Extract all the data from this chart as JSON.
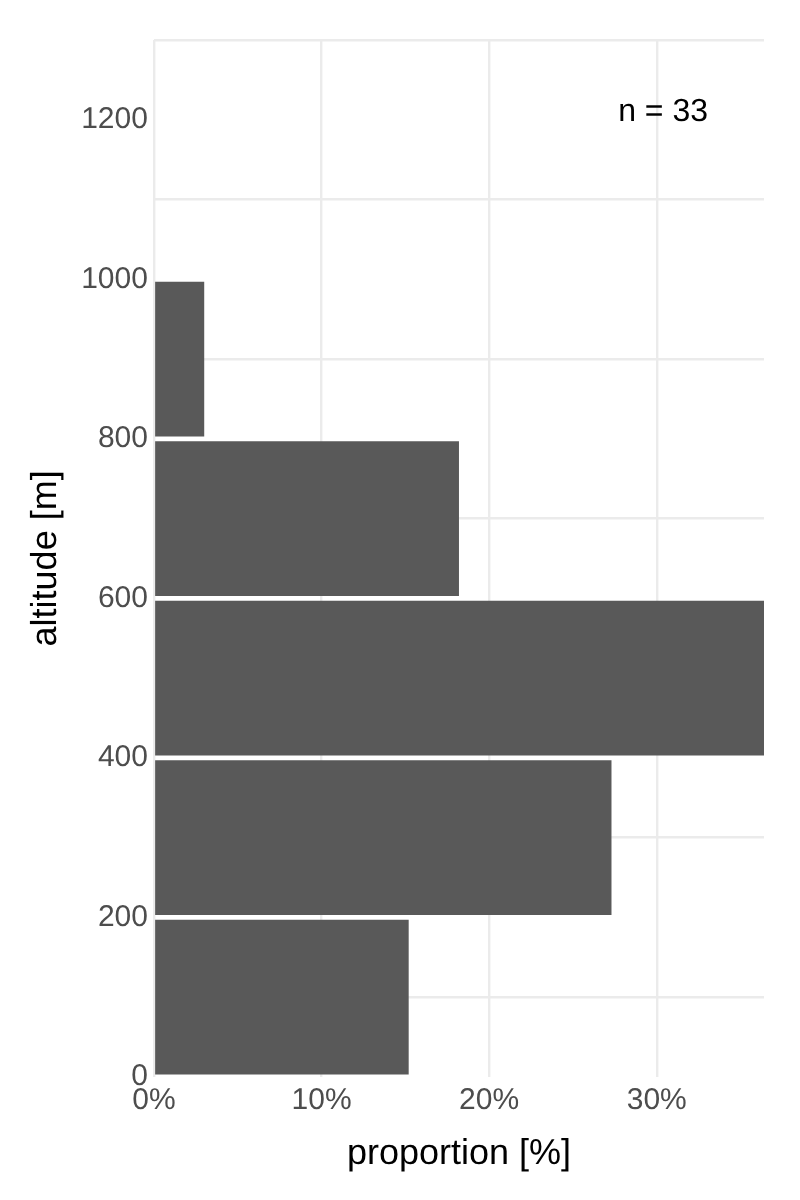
{
  "chart_data": {
    "type": "histogram",
    "orientation": "horizontal",
    "xlabel": "proportion [%]",
    "ylabel": "altitude [m]",
    "bins": [
      0,
      200,
      400,
      600,
      800,
      1000
    ],
    "values": [
      15.2,
      27.3,
      36.4,
      18.2,
      3.0
    ],
    "color": "#595959",
    "xlim": [
      0,
      36.4
    ],
    "xticks": [
      {
        "value": 0,
        "label": "0%"
      },
      {
        "value": 10,
        "label": "10%"
      },
      {
        "value": 20,
        "label": "20%"
      },
      {
        "value": 30,
        "label": "30%"
      }
    ],
    "ylim": [
      0,
      1300
    ],
    "yticks": [
      0,
      200,
      400,
      600,
      800,
      1000,
      1200
    ],
    "grid": true,
    "legend": false,
    "annotations": [
      "n = 33"
    ]
  }
}
